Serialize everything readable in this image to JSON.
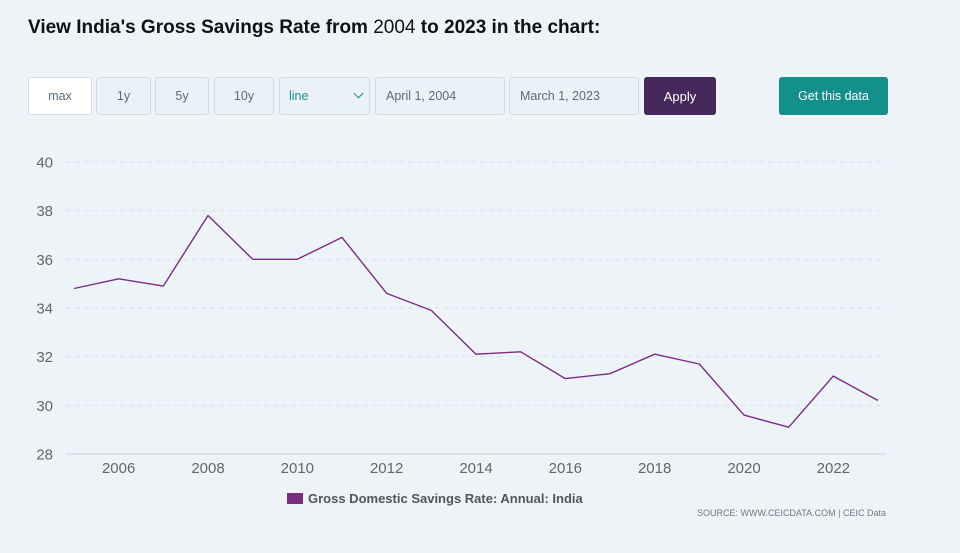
{
  "heading": {
    "part1": "View India's Gross Savings Rate from ",
    "start_year": "2004",
    "part2": " to 2023 in the chart:"
  },
  "controls": {
    "range_buttons": [
      "max",
      "1y",
      "5y",
      "10y"
    ],
    "active_range": "max",
    "chart_type_value": "line",
    "start_date": "April 1, 2004",
    "end_date": "March 1, 2023",
    "apply_label": "Apply",
    "get_data_label": "Get this data"
  },
  "colors": {
    "line": "#7a2d82",
    "apply": "#44295a",
    "get_data": "#14908c"
  },
  "chart_data": {
    "type": "line",
    "x": [
      2005,
      2006,
      2007,
      2008,
      2009,
      2010,
      2011,
      2012,
      2013,
      2014,
      2015,
      2016,
      2017,
      2018,
      2019,
      2020,
      2021,
      2022,
      2023
    ],
    "series": [
      {
        "name": "Gross Domestic Savings Rate: Annual: India",
        "values": [
          34.8,
          35.2,
          34.9,
          37.8,
          36.0,
          36.0,
          36.9,
          34.6,
          33.9,
          32.1,
          32.2,
          31.1,
          31.3,
          32.1,
          31.7,
          29.6,
          29.1,
          31.2,
          30.2
        ]
      }
    ],
    "xticks": [
      2006,
      2008,
      2010,
      2012,
      2014,
      2016,
      2018,
      2020,
      2022
    ],
    "yticks": [
      28,
      30,
      32,
      34,
      36,
      38,
      40
    ],
    "xlim": [
      2005,
      2023
    ],
    "ylim": [
      28,
      40
    ],
    "grid": true,
    "legend": "bottom-center",
    "source": "SOURCE: WWW.CEICDATA.COM | CEIC Data"
  }
}
